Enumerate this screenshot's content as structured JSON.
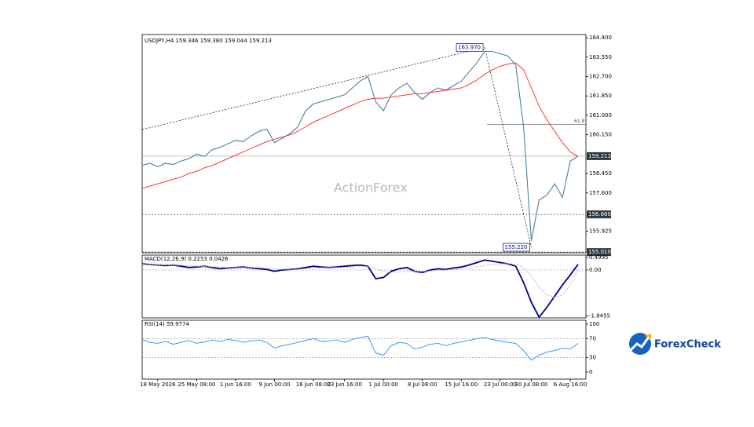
{
  "chart_data": [
    {
      "type": "line",
      "title": "USDJPY,H4  159.346 159.380 159.044 159.213",
      "categories": [
        null,
        null,
        "18 May 2026",
        null,
        null,
        null,
        null,
        "25 May 08:00",
        null,
        null,
        null,
        null,
        "1 Jun 16:00",
        null,
        null,
        null,
        null,
        "9 Jun 00:00",
        null,
        null,
        null,
        null,
        "16 Jun 08:00",
        null,
        null,
        null,
        "23 Jun 16:00",
        null,
        null,
        null,
        null,
        "1 Jul 00:00",
        null,
        null,
        null,
        null,
        "8 Jul 08:00",
        null,
        null,
        null,
        null,
        "15 Jul 16:00",
        null,
        null,
        null,
        null,
        "23 Jul 00:00",
        null,
        null,
        null,
        "30 Jul 08:00",
        null,
        null,
        null,
        null,
        "6 Aug 16:00",
        null
      ],
      "series": [
        {
          "color": "#4a7f9e",
          "values": [
            158.8,
            158.9,
            158.75,
            158.9,
            158.85,
            159.0,
            159.1,
            159.3,
            159.2,
            159.5,
            159.6,
            159.75,
            159.9,
            159.85,
            160.1,
            160.3,
            160.4,
            159.8,
            160.0,
            160.2,
            160.5,
            161.2,
            161.5,
            161.6,
            161.7,
            161.8,
            161.9,
            162.2,
            162.5,
            162.7,
            161.6,
            161.2,
            161.9,
            162.2,
            162.4,
            162.0,
            161.7,
            162.0,
            162.2,
            162.1,
            162.3,
            162.5,
            162.9,
            163.3,
            163.8,
            163.8,
            163.7,
            163.6,
            163.2,
            160.5,
            155.5,
            157.3,
            157.5,
            158.0,
            157.4,
            159.0,
            159.213
          ]
        },
        {
          "color": "#ff2020",
          "values": [
            157.8,
            157.9,
            158.0,
            158.1,
            158.2,
            158.3,
            158.45,
            158.55,
            158.7,
            158.8,
            158.95,
            159.1,
            159.25,
            159.4,
            159.55,
            159.7,
            159.85,
            159.95,
            160.05,
            160.15,
            160.3,
            160.5,
            160.7,
            160.85,
            161.0,
            161.15,
            161.3,
            161.45,
            161.6,
            161.7,
            161.75,
            161.75,
            161.8,
            161.85,
            161.9,
            161.95,
            161.95,
            162.0,
            162.05,
            162.1,
            162.15,
            162.2,
            162.35,
            162.55,
            162.8,
            163.0,
            163.15,
            163.25,
            163.3,
            163.0,
            162.2,
            161.4,
            160.8,
            160.3,
            159.8,
            159.4,
            159.2
          ]
        }
      ],
      "ylim": [
        154.98,
        164.54
      ],
      "yticks": [
        {
          "value": 164.4,
          "label": "164.400"
        },
        {
          "value": 163.55,
          "label": "163.550"
        },
        {
          "value": 162.7,
          "label": "162.700"
        },
        {
          "value": 161.85,
          "label": "161.850"
        },
        {
          "value": 161.0,
          "label": "161.000"
        },
        {
          "value": 160.15,
          "label": "160.150"
        },
        {
          "value": 158.45,
          "label": "158.450"
        },
        {
          "value": 157.6,
          "label": "157.600"
        },
        {
          "value": 155.925,
          "label": "155.925"
        }
      ],
      "hlines": [
        {
          "value": 159.213,
          "label": "159.213"
        },
        {
          "value": 156.66,
          "label": "156.660"
        },
        {
          "value": 155.01,
          "label": "155.010"
        }
      ],
      "annotations": [
        {
          "value": 163.97,
          "label": "163.970"
        },
        {
          "value": 155.22,
          "label": "155.220"
        }
      ],
      "fib": {
        "value": 160.6,
        "label": "61.8"
      }
    },
    {
      "type": "line",
      "title": "MACD(12,26,9) 0.2253 0.0426",
      "series": [
        {
          "color": "#00008b",
          "values": [
            0.25,
            0.22,
            0.2,
            0.18,
            0.2,
            0.15,
            0.1,
            0.12,
            0.15,
            0.1,
            0.05,
            0.08,
            0.1,
            0.12,
            0.08,
            0.05,
            0.02,
            -0.05,
            0.0,
            0.02,
            0.05,
            0.1,
            0.15,
            0.12,
            0.1,
            0.12,
            0.15,
            0.18,
            0.2,
            0.15,
            -0.35,
            -0.3,
            -0.05,
            0.05,
            0.1,
            -0.05,
            -0.1,
            0.0,
            0.05,
            0.02,
            0.08,
            0.12,
            0.2,
            0.3,
            0.4,
            0.35,
            0.3,
            0.25,
            0.15,
            -0.5,
            -1.3,
            -1.9,
            -1.5,
            -1.05,
            -0.6,
            -0.2,
            0.2253
          ]
        },
        {
          "color": "#bbbbbb",
          "values": [
            0.22,
            0.22,
            0.21,
            0.2,
            0.2,
            0.19,
            0.17,
            0.15,
            0.14,
            0.13,
            0.12,
            0.1,
            0.1,
            0.1,
            0.1,
            0.09,
            0.07,
            0.05,
            0.03,
            0.02,
            0.03,
            0.05,
            0.07,
            0.09,
            0.1,
            0.1,
            0.11,
            0.12,
            0.14,
            0.15,
            0.05,
            -0.05,
            -0.1,
            -0.08,
            -0.05,
            -0.05,
            -0.05,
            -0.04,
            -0.02,
            0.0,
            0.02,
            0.05,
            0.08,
            0.12,
            0.18,
            0.22,
            0.25,
            0.26,
            0.24,
            0.1,
            -0.25,
            -0.7,
            -1.0,
            -1.1,
            -1.0,
            -0.6,
            0.0426
          ]
        }
      ],
      "ylim": [
        -1.93,
        0.6
      ],
      "yticks": [
        0.4995,
        {
          "value": 0,
          "label": "0.00"
        },
        -1.8455
      ]
    },
    {
      "type": "line",
      "title": "RSI(14) 59.9774",
      "series": [
        {
          "color": "#1e90ff",
          "values": [
            68,
            62,
            60,
            64,
            58,
            62,
            66,
            60,
            63,
            67,
            64,
            68,
            66,
            62,
            65,
            67,
            62,
            50,
            55,
            58,
            62,
            66,
            70,
            64,
            65,
            67,
            62,
            68,
            72,
            75,
            40,
            35,
            55,
            62,
            60,
            48,
            52,
            58,
            60,
            55,
            60,
            63,
            66,
            70,
            72,
            68,
            65,
            62,
            60,
            45,
            25,
            35,
            42,
            45,
            50,
            48,
            59.9774
          ]
        }
      ],
      "ylim": [
        0,
        100
      ],
      "yticks": [
        100,
        70,
        30,
        0
      ],
      "levels": [
        70,
        30
      ]
    }
  ],
  "watermark": "ActionForex",
  "logo": "ForexCheck"
}
